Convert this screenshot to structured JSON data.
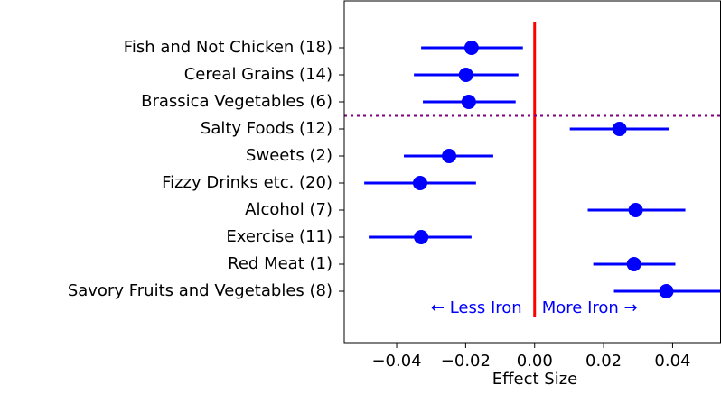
{
  "chart_data": {
    "type": "forest",
    "xlabel": "Effect Size",
    "categories": [
      "Fish and Not Chicken (18)",
      "Cereal Grains (14)",
      "Brassica Vegetables (6)",
      "Salty Foods (12)",
      "Sweets (2)",
      "Fizzy Drinks etc. (20)",
      "Alcohol (7)",
      "Exercise (11)",
      "Red Meat (1)",
      "Savory Fruits and Vegetables (8)"
    ],
    "series": [
      {
        "color": "#0000ff",
        "values": [
          -0.0183,
          -0.0199,
          -0.0191,
          0.0246,
          -0.0248,
          -0.0332,
          0.0293,
          -0.0329,
          0.0288,
          0.0382
        ],
        "ci_lower": [
          -0.0329,
          -0.035,
          -0.0324,
          0.0102,
          -0.0379,
          -0.0494,
          0.0154,
          -0.0481,
          0.017,
          0.023
        ],
        "ci_upper": [
          -0.0034,
          -0.0047,
          -0.0055,
          0.039,
          -0.012,
          -0.017,
          0.0437,
          -0.0183,
          0.0408,
          0.0539
        ]
      }
    ],
    "xlim": [
      -0.0552,
      0.0539
    ],
    "xticks": [
      {
        "value": -0.04,
        "label": "−0.04"
      },
      {
        "value": -0.02,
        "label": "−0.02"
      },
      {
        "value": 0,
        "label": "0.00"
      },
      0.02,
      0.04
    ],
    "ref_line": {
      "value": 0,
      "color": "#ff0000"
    },
    "separator": {
      "after_index": 2,
      "color": "#800080"
    },
    "annotations": [
      {
        "text": "← Less Iron",
        "color": "#0000ff"
      },
      {
        "text": "More Iron →",
        "color": "#0000ff"
      }
    ]
  }
}
